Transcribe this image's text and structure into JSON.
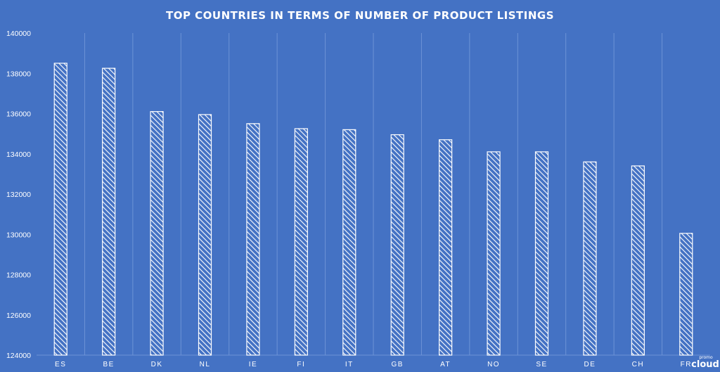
{
  "chart_data": {
    "type": "bar",
    "title": "TOP COUNTRIES IN TERMS OF NUMBER OF PRODUCT LISTINGS",
    "xlabel": "",
    "ylabel": "",
    "categories": [
      "ES",
      "BE",
      "DK",
      "NL",
      "IE",
      "FI",
      "IT",
      "GB",
      "AT",
      "NO",
      "SE",
      "DE",
      "CH",
      "FR"
    ],
    "values": [
      138500,
      138250,
      136100,
      135950,
      135500,
      135250,
      135200,
      134950,
      134700,
      134100,
      134100,
      133600,
      133400,
      130050
    ],
    "ylim": [
      124000,
      140000
    ],
    "yticks": [
      124000,
      126000,
      128000,
      130000,
      132000,
      134000,
      136000,
      138000,
      140000
    ],
    "grid": "vertical",
    "legend": "none",
    "colors": {
      "background": "#4472c4",
      "bar_stripe": "#ffffff",
      "bar_fill": "#4472c4",
      "grid": "#6d93d6",
      "text": "#ffffff"
    }
  },
  "watermark": {
    "small_text": "promo",
    "big_text": "cloud"
  }
}
